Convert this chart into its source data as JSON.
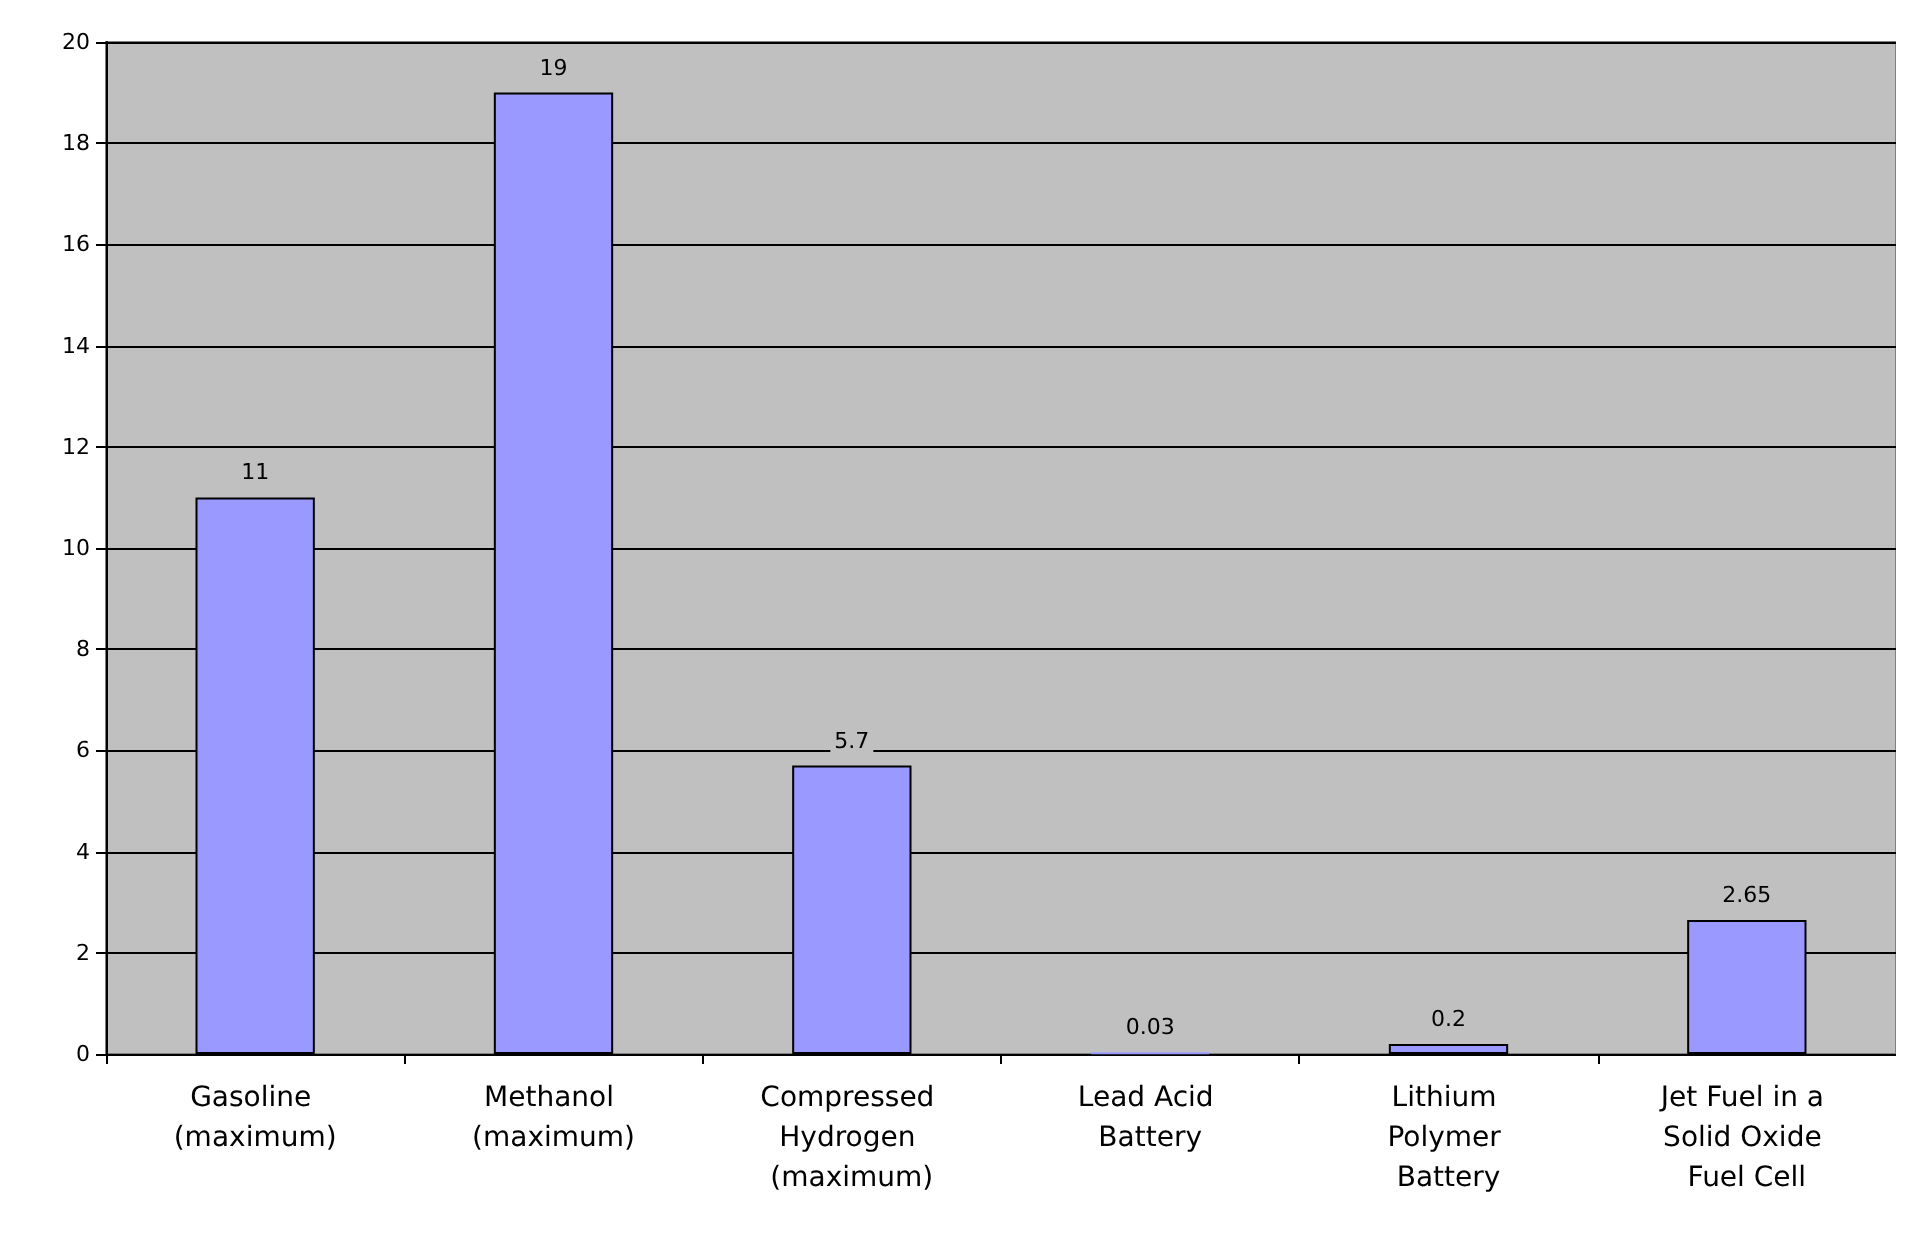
{
  "chart_data": {
    "type": "bar",
    "categories": [
      "Gasoline (maximum)",
      "Methanol (maximum)",
      "Compressed Hydrogen (maximum)",
      "Lead Acid Battery",
      "Lithium Polymer Battery",
      "Jet Fuel in a Solid Oxide Fuel Cell"
    ],
    "values": [
      11,
      19,
      5.7,
      0.03,
      0.2,
      2.65
    ],
    "color": "#9999ff",
    "ylim": [
      0,
      20
    ],
    "yticks": [
      0,
      2,
      4,
      6,
      8,
      10,
      12,
      14,
      16,
      18,
      20
    ],
    "grid": "y",
    "data_labels": true
  }
}
